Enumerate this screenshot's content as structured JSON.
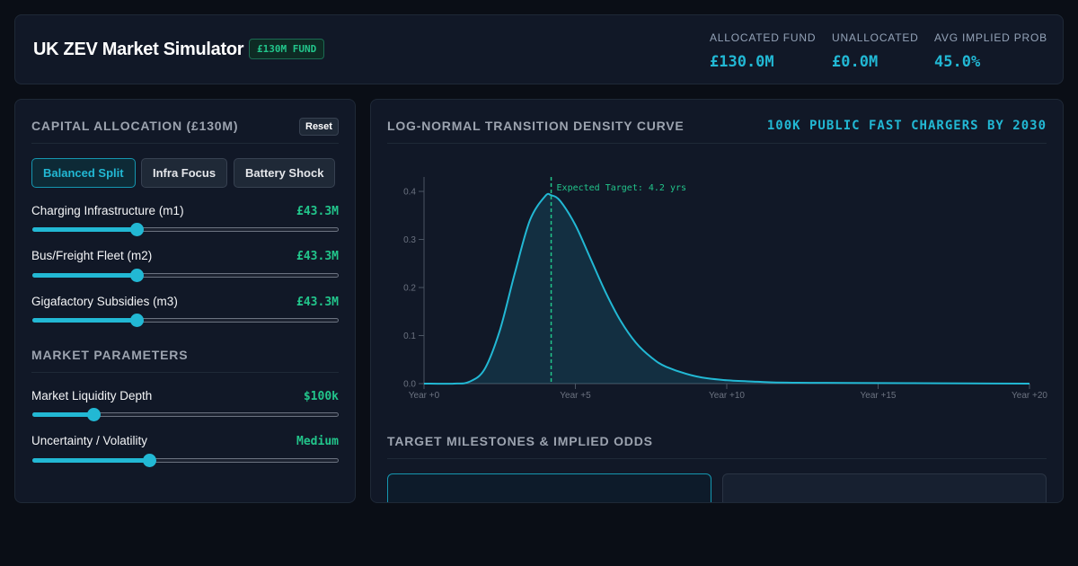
{
  "header": {
    "title": "UK ZEV Market Simulator",
    "fund_badge": "£130M FUND",
    "stats": [
      {
        "label": "ALLOCATED FUND",
        "value": "£130.0M"
      },
      {
        "label": "UNALLOCATED",
        "value": "£0.0M"
      },
      {
        "label": "AVG IMPLIED PROB",
        "value": "45.0%"
      }
    ]
  },
  "capital": {
    "title": "CAPITAL ALLOCATION (£130M)",
    "reset_label": "Reset",
    "presets": [
      "Balanced Split",
      "Infra Focus",
      "Battery Shock"
    ],
    "active_preset": "Balanced Split",
    "sliders": [
      {
        "label": "Charging Infrastructure (m1)",
        "value": "£43.3M",
        "level": 0.34
      },
      {
        "label": "Bus/Freight Fleet (m2)",
        "value": "£43.3M",
        "level": 0.34
      },
      {
        "label": "Gigafactory Subsidies (m3)",
        "value": "£43.3M",
        "level": 0.34
      }
    ]
  },
  "market": {
    "title": "MARKET PARAMETERS",
    "sliders": [
      {
        "label": "Market Liquidity Depth",
        "value": "$100k",
        "level": 0.2
      },
      {
        "label": "Uncertainty / Volatility",
        "value": "Medium",
        "level": 0.38
      }
    ]
  },
  "density": {
    "title": "LOG-NORMAL TRANSITION DENSITY CURVE",
    "goal": "100K PUBLIC FAST CHARGERS BY 2030"
  },
  "milestones": {
    "title": "TARGET MILESTONES & IMPLIED ODDS"
  },
  "colors": {
    "accent": "#22b8d4",
    "positive": "#22c58b",
    "panel": "#111827",
    "background": "#0a0e16"
  },
  "chart_data": {
    "type": "area",
    "title": "",
    "xlabel": "",
    "ylabel": "",
    "x_ticks": [
      0,
      5,
      10,
      15,
      20
    ],
    "x_tick_labels": [
      "Year +0",
      "Year +5",
      "Year +10",
      "Year +15",
      "Year +20"
    ],
    "y_ticks": [
      0.0,
      0.1,
      0.2,
      0.3,
      0.4
    ],
    "y_tick_labels": [
      "0.0",
      "0.1",
      "0.2",
      "0.3",
      "0.4"
    ],
    "xlim": [
      0,
      20
    ],
    "ylim": [
      0,
      0.43
    ],
    "grid": false,
    "legend": "none",
    "series": [
      {
        "x": [
          0,
          1,
          1.5,
          2,
          2.5,
          3,
          3.5,
          4,
          4.2,
          4.5,
          5,
          5.5,
          6,
          6.5,
          7,
          7.5,
          8,
          9,
          10,
          11,
          12,
          14,
          16,
          18,
          20
        ],
        "values": [
          0.0,
          0.0,
          0.004,
          0.03,
          0.11,
          0.23,
          0.34,
          0.39,
          0.392,
          0.38,
          0.33,
          0.26,
          0.19,
          0.13,
          0.085,
          0.055,
          0.035,
          0.015,
          0.007,
          0.004,
          0.002,
          0.0015,
          0.001,
          0.0005,
          0.0
        ]
      }
    ],
    "annotations": [
      {
        "x": 4.2,
        "text": "Expected Target: 4.2 yrs"
      }
    ]
  }
}
